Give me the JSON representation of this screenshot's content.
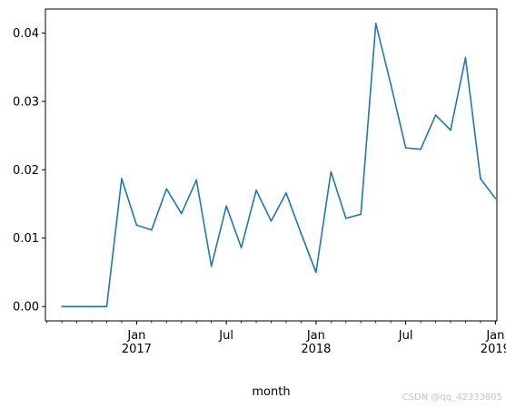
{
  "chart_data": {
    "type": "line",
    "xlabel": "month",
    "ylabel": "",
    "title": "",
    "x": [
      "2016-08",
      "2016-09",
      "2016-10",
      "2016-11",
      "2016-12",
      "2017-01",
      "2017-02",
      "2017-03",
      "2017-04",
      "2017-05",
      "2017-06",
      "2017-07",
      "2017-08",
      "2017-09",
      "2017-10",
      "2017-11",
      "2017-12",
      "2018-01",
      "2018-02",
      "2018-03",
      "2018-04",
      "2018-05",
      "2018-06",
      "2018-07",
      "2018-08",
      "2018-09",
      "2018-10",
      "2018-11",
      "2018-12",
      "2019-01"
    ],
    "series": [
      {
        "name": "",
        "color": "#1f77b4",
        "values": [
          0.0,
          0.0,
          0.0,
          0.0,
          0.0187,
          0.0119,
          0.0112,
          0.0172,
          0.0136,
          0.0185,
          0.0059,
          0.0147,
          0.0086,
          0.017,
          0.0125,
          0.0166,
          0.0107,
          0.005,
          0.0197,
          0.0129,
          0.0135,
          0.0414,
          0.0325,
          0.0232,
          0.023,
          0.028,
          0.0258,
          0.0364,
          0.0187,
          0.0158
        ]
      }
    ],
    "xlim": [
      "2016-08",
      "2019-01"
    ],
    "ylim": [
      -0.0021,
      0.0435
    ],
    "yticks": [
      0.0,
      0.01,
      0.02,
      0.03,
      0.04
    ],
    "ytick_labels": [
      "0.00",
      "0.01",
      "0.02",
      "0.03",
      "0.04"
    ],
    "xticks": [
      {
        "x": "2017-01",
        "label": "Jan",
        "sublabel": "2017"
      },
      {
        "x": "2017-07",
        "label": "Jul",
        "sublabel": ""
      },
      {
        "x": "2018-01",
        "label": "Jan",
        "sublabel": "2018"
      },
      {
        "x": "2018-07",
        "label": "Jul",
        "sublabel": ""
      },
      {
        "x": "2019-01",
        "label": "Jan",
        "sublabel": "2019"
      }
    ],
    "grid": false,
    "legend": "none"
  },
  "watermark": "CSDN @qq_42333805"
}
